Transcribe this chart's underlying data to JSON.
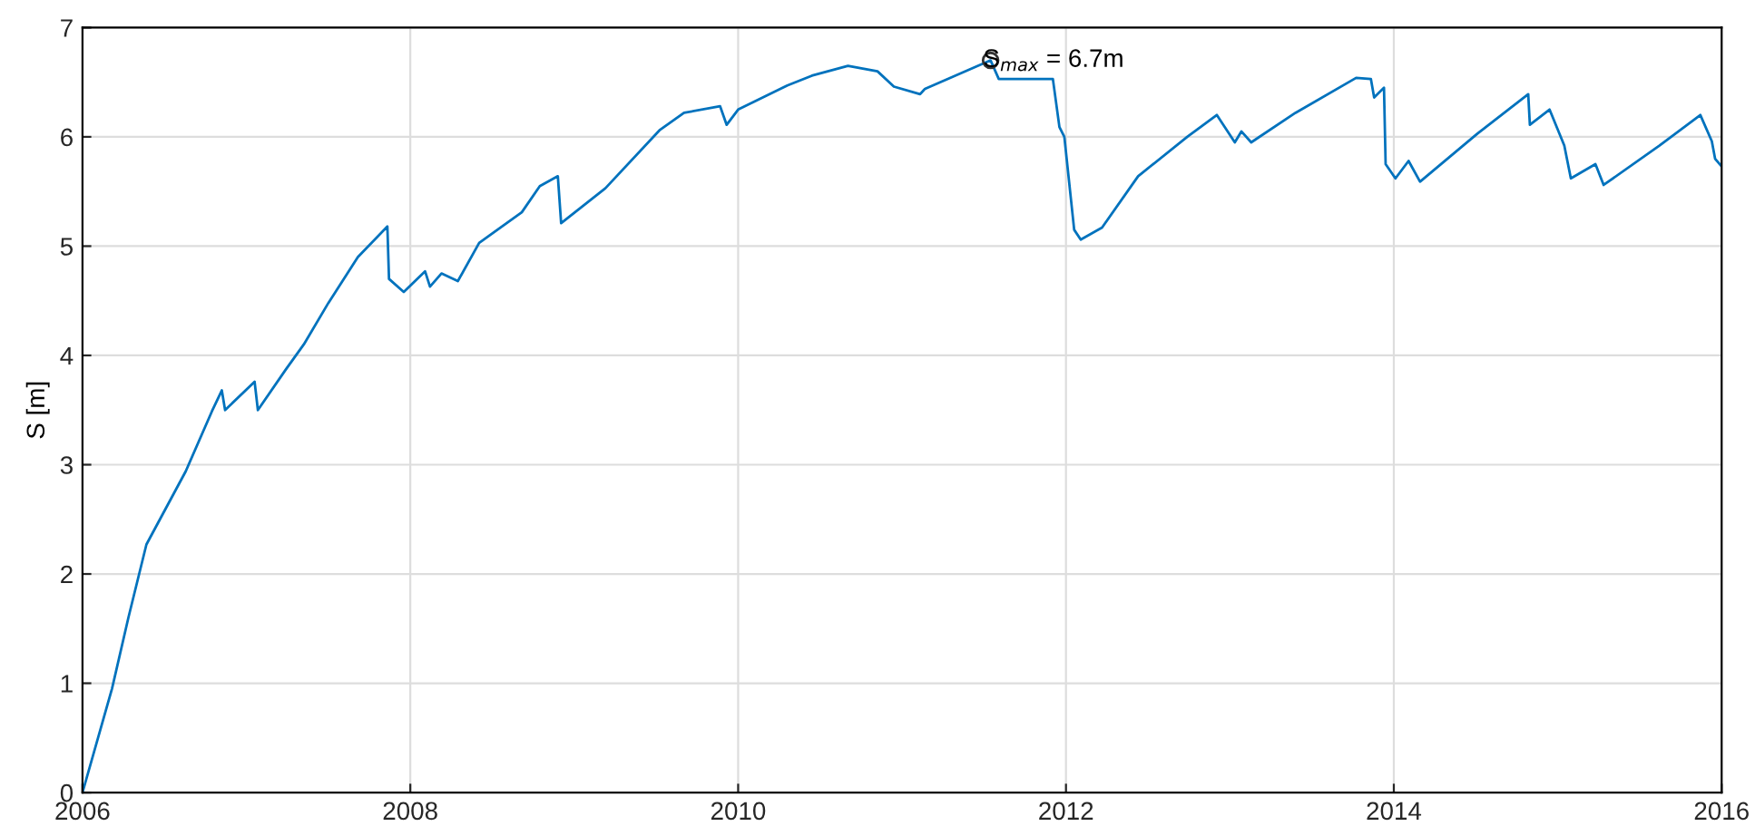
{
  "chart_data": {
    "type": "line",
    "ylabel": "S [m]",
    "xlim": [
      2006,
      2016
    ],
    "xticks": [
      2006,
      2008,
      2010,
      2012,
      2014,
      2016
    ],
    "ylim": [
      0,
      7
    ],
    "yticks": [
      0,
      1,
      2,
      3,
      4,
      5,
      6,
      7
    ],
    "grid": true,
    "marker": "none",
    "line_style": "solid",
    "series": [
      {
        "color": "#0072bd",
        "x": [
          2006.0,
          2006.18,
          2006.28,
          2006.39,
          2006.63,
          2006.79,
          2006.85,
          2006.87,
          2007.05,
          2007.07,
          2007.24,
          2007.35,
          2007.5,
          2007.68,
          2007.86,
          2007.87,
          2007.96,
          2008.09,
          2008.12,
          2008.19,
          2008.29,
          2008.42,
          2008.68,
          2008.79,
          2008.9,
          2008.92,
          2009.19,
          2009.52,
          2009.67,
          2009.89,
          2009.93,
          2010.0,
          2010.3,
          2010.45,
          2010.67,
          2010.85,
          2010.95,
          2011.11,
          2011.14,
          2011.54,
          2011.59,
          2011.92,
          2011.96,
          2011.99,
          2012.05,
          2012.09,
          2012.22,
          2012.44,
          2012.74,
          2012.92,
          2013.03,
          2013.07,
          2013.13,
          2013.4,
          2013.77,
          2013.86,
          2013.88,
          2013.94,
          2013.95,
          2014.01,
          2014.09,
          2014.16,
          2014.51,
          2014.82,
          2014.83,
          2014.95,
          2015.04,
          2015.08,
          2015.23,
          2015.28,
          2015.62,
          2015.87,
          2015.94,
          2015.96,
          2016.0
        ],
        "values": [
          0.0,
          0.95,
          1.6,
          2.27,
          2.94,
          3.49,
          3.68,
          3.5,
          3.76,
          3.5,
          3.87,
          4.1,
          4.48,
          4.9,
          5.18,
          4.7,
          4.58,
          4.77,
          4.63,
          4.75,
          4.68,
          5.03,
          5.31,
          5.55,
          5.64,
          5.21,
          5.53,
          6.06,
          6.22,
          6.28,
          6.11,
          6.25,
          6.47,
          6.56,
          6.65,
          6.6,
          6.46,
          6.39,
          6.44,
          6.7,
          6.53,
          6.53,
          6.09,
          6.0,
          5.15,
          5.06,
          5.17,
          5.64,
          6.0,
          6.2,
          5.95,
          6.05,
          5.95,
          6.22,
          6.54,
          6.53,
          6.36,
          6.45,
          5.75,
          5.62,
          5.78,
          5.59,
          6.03,
          6.39,
          6.11,
          6.25,
          5.92,
          5.62,
          5.75,
          5.56,
          5.92,
          6.2,
          5.96,
          5.8,
          5.73
        ]
      }
    ],
    "annotations": [
      {
        "text": "S$_{max}$ = 6.7m",
        "x": 2011.54,
        "y": 6.7
      }
    ]
  }
}
